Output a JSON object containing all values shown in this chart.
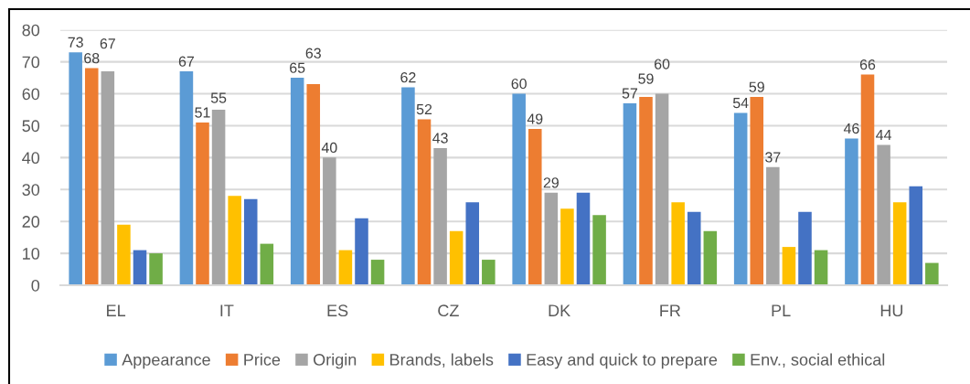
{
  "chart_data": {
    "type": "bar",
    "categories": [
      "EL",
      "IT",
      "ES",
      "CZ",
      "DK",
      "FR",
      "PL",
      "HU"
    ],
    "series": [
      {
        "name": "Appearance",
        "color": "#5b9bd5",
        "values": [
          73,
          67,
          65,
          62,
          60,
          57,
          54,
          46
        ],
        "value_labels": [
          "73",
          "67",
          "65",
          "62",
          "60",
          "57",
          "54",
          "46"
        ]
      },
      {
        "name": "Price",
        "color": "#ed7d31",
        "values": [
          68,
          51,
          63,
          52,
          49,
          59,
          59,
          66
        ],
        "value_labels": [
          "68",
          "51",
          "63",
          "52",
          "49",
          "59",
          "59",
          "66"
        ]
      },
      {
        "name": "Origin",
        "color": "#a5a5a5",
        "values": [
          67,
          55,
          40,
          43,
          29,
          60,
          37,
          44
        ],
        "value_labels": [
          "67",
          "55",
          "40",
          "43",
          "29",
          "60",
          "37",
          "44"
        ]
      },
      {
        "name": "Brands, labels",
        "color": "#ffc000",
        "values": [
          19,
          28,
          11,
          17,
          24,
          26,
          12,
          26
        ]
      },
      {
        "name": "Easy and quick to prepare",
        "color": "#4472c4",
        "values": [
          11,
          27,
          21,
          26,
          29,
          23,
          23,
          31
        ]
      },
      {
        "name": "Env., social ethical",
        "color": "#70ad47",
        "values": [
          10,
          13,
          8,
          8,
          22,
          17,
          11,
          7
        ]
      }
    ],
    "ylim": [
      0,
      80
    ],
    "yticks": [
      0,
      10,
      20,
      30,
      40,
      50,
      60,
      70,
      80
    ],
    "grid": "y",
    "legend": "bottom"
  }
}
